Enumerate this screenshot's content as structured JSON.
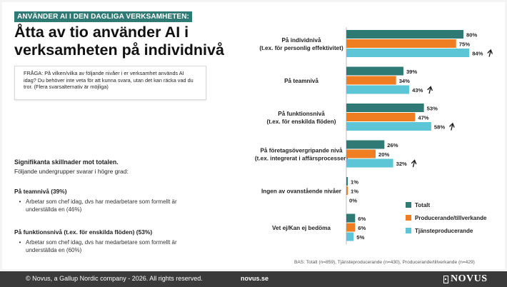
{
  "header": {
    "badge": "ANVÄNDER AI I DEN DAGLIGA VERKSAMHETEN:",
    "title": "Åtta av tio använder AI i verksamheten på individnivå"
  },
  "question": "FRÅGA: På vilken/vilka av följande nivåer i er verksamhet används AI idag? Du behöver inte veta för att kunna svara, utan det kan räcka vad du tror. (Flera svarsalternativ är möjliga)",
  "significance": {
    "title": "Signifikanta skillnader mot totalen.",
    "subtitle": "Följande undergrupper svarar i högre grad:",
    "groups": [
      {
        "title": "På teamnivå (39%)",
        "bullet": "Arbetar som chef idag, dvs har medarbetare som formellt är underställda en (46%)"
      },
      {
        "title": "På funktionsnivå (t.ex. för enskilda flöden) (53%)",
        "bullet": "Arbetar som chef idag, dvs har medarbetare som formellt är underställda en (60%)"
      }
    ]
  },
  "chart_data": {
    "type": "bar",
    "orientation": "horizontal",
    "categories": [
      [
        "På individnivå",
        "(t.ex. för personlig effektivitet)"
      ],
      [
        "På teamnivå"
      ],
      [
        "På funktionsnivå",
        "(t.ex. för enskilda flöden)"
      ],
      [
        "På företagsövergripande nivå",
        "(t.ex. integrerat i affärsprocesser)"
      ],
      [
        "Ingen av ovanstående nivåer"
      ],
      [
        "Vet ej/Kan ej bedöma"
      ]
    ],
    "series": [
      {
        "name": "Totalt",
        "color": "#2f7a74",
        "values": [
          80,
          39,
          53,
          26,
          1,
          6
        ]
      },
      {
        "name": "Producerande/tillverkande",
        "color": "#ef7d22",
        "values": [
          75,
          34,
          47,
          20,
          1,
          6
        ]
      },
      {
        "name": "Tjänsteproducerande",
        "color": "#5cc6d6",
        "values": [
          84,
          43,
          58,
          32,
          0,
          5
        ]
      }
    ],
    "significant_up": [
      {
        "series": 2,
        "category": 0
      },
      {
        "series": 2,
        "category": 1
      },
      {
        "series": 2,
        "category": 2
      },
      {
        "series": 2,
        "category": 3
      }
    ],
    "value_suffix": "%",
    "xlim": [
      0,
      100
    ],
    "legend_position": "bottom-right"
  },
  "base_note": "BAS: Totalt (n=859), Tjänsteproducerande (n=430), Producerande/tillverkande (n=429)",
  "footer": {
    "copyright": "© Novus, a Gallup Nordic company - 2026. All rights reserved.",
    "url": "novus.se",
    "logo_text": "NOVUS"
  }
}
